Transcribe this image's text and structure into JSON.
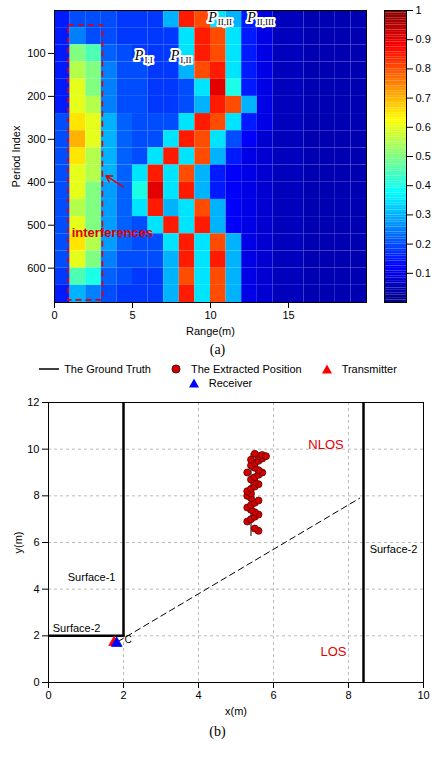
{
  "chart_data": [
    {
      "type": "heatmap",
      "caption": "(a)",
      "xlabel": "Range(m)",
      "ylabel": "Period Index",
      "xlim": [
        0,
        20
      ],
      "xticks": [
        0,
        5,
        10,
        15
      ],
      "ylim": [
        680,
        0
      ],
      "yticks": [
        100,
        200,
        300,
        400,
        500,
        600
      ],
      "x_bins": [
        0,
        1,
        2,
        3,
        4,
        5,
        6,
        7,
        8,
        9,
        10,
        11,
        12,
        13,
        14,
        15,
        16,
        17,
        18,
        19,
        20
      ],
      "y_bins": [
        0,
        40,
        80,
        120,
        160,
        200,
        240,
        280,
        320,
        360,
        400,
        440,
        480,
        520,
        560,
        600,
        640,
        680
      ],
      "cells": [
        [
          0.15,
          0.2,
          0.2,
          0.2,
          0.18,
          0.18,
          0.18,
          0.3,
          0.85,
          0.8,
          0.35,
          0.3,
          0.15,
          0.1,
          0.06,
          0.06,
          0.05,
          0.05,
          0.05,
          0.05
        ],
        [
          0.15,
          0.25,
          0.2,
          0.2,
          0.18,
          0.18,
          0.18,
          0.18,
          0.35,
          0.85,
          0.8,
          0.35,
          0.15,
          0.1,
          0.06,
          0.06,
          0.05,
          0.05,
          0.05,
          0.05
        ],
        [
          0.15,
          0.5,
          0.45,
          0.22,
          0.2,
          0.18,
          0.18,
          0.18,
          0.35,
          0.85,
          0.8,
          0.35,
          0.15,
          0.1,
          0.06,
          0.06,
          0.05,
          0.05,
          0.05,
          0.05
        ],
        [
          0.15,
          0.55,
          0.5,
          0.25,
          0.2,
          0.2,
          0.18,
          0.18,
          0.3,
          0.8,
          0.85,
          0.35,
          0.15,
          0.1,
          0.06,
          0.06,
          0.05,
          0.05,
          0.05,
          0.05
        ],
        [
          0.15,
          0.6,
          0.5,
          0.25,
          0.2,
          0.2,
          0.18,
          0.18,
          0.2,
          0.35,
          0.9,
          0.4,
          0.15,
          0.1,
          0.06,
          0.06,
          0.05,
          0.05,
          0.05,
          0.05
        ],
        [
          0.15,
          0.6,
          0.55,
          0.25,
          0.2,
          0.2,
          0.18,
          0.18,
          0.2,
          0.3,
          0.85,
          0.8,
          0.3,
          0.1,
          0.06,
          0.06,
          0.05,
          0.05,
          0.05,
          0.05
        ],
        [
          0.2,
          0.65,
          0.6,
          0.3,
          0.22,
          0.2,
          0.2,
          0.2,
          0.35,
          0.85,
          0.8,
          0.35,
          0.15,
          0.1,
          0.06,
          0.06,
          0.05,
          0.05,
          0.05,
          0.05
        ],
        [
          0.2,
          0.7,
          0.6,
          0.3,
          0.22,
          0.2,
          0.2,
          0.35,
          0.85,
          0.8,
          0.35,
          0.2,
          0.12,
          0.08,
          0.06,
          0.06,
          0.05,
          0.05,
          0.05,
          0.05
        ],
        [
          0.2,
          0.65,
          0.55,
          0.3,
          0.22,
          0.2,
          0.35,
          0.85,
          0.35,
          0.8,
          0.3,
          0.15,
          0.1,
          0.08,
          0.06,
          0.06,
          0.05,
          0.05,
          0.05,
          0.05
        ],
        [
          0.2,
          0.6,
          0.55,
          0.3,
          0.22,
          0.35,
          0.85,
          0.35,
          0.8,
          0.3,
          0.15,
          0.12,
          0.1,
          0.08,
          0.06,
          0.06,
          0.05,
          0.05,
          0.05,
          0.05
        ],
        [
          0.2,
          0.6,
          0.5,
          0.28,
          0.22,
          0.4,
          0.9,
          0.35,
          0.85,
          0.3,
          0.15,
          0.12,
          0.1,
          0.08,
          0.06,
          0.06,
          0.05,
          0.05,
          0.05,
          0.05
        ],
        [
          0.2,
          0.55,
          0.5,
          0.28,
          0.22,
          0.35,
          0.85,
          0.3,
          0.35,
          0.8,
          0.3,
          0.12,
          0.1,
          0.08,
          0.06,
          0.06,
          0.05,
          0.05,
          0.05,
          0.05
        ],
        [
          0.2,
          0.6,
          0.5,
          0.28,
          0.22,
          0.2,
          0.35,
          0.85,
          0.35,
          0.85,
          0.3,
          0.12,
          0.1,
          0.08,
          0.06,
          0.06,
          0.05,
          0.05,
          0.05,
          0.05
        ],
        [
          0.2,
          0.65,
          0.55,
          0.28,
          0.22,
          0.2,
          0.2,
          0.35,
          0.85,
          0.35,
          0.8,
          0.3,
          0.1,
          0.08,
          0.06,
          0.06,
          0.05,
          0.05,
          0.05,
          0.05
        ],
        [
          0.2,
          0.6,
          0.5,
          0.25,
          0.2,
          0.2,
          0.2,
          0.3,
          0.85,
          0.35,
          0.85,
          0.3,
          0.1,
          0.08,
          0.06,
          0.06,
          0.05,
          0.05,
          0.05,
          0.05
        ],
        [
          0.18,
          0.45,
          0.4,
          0.22,
          0.2,
          0.18,
          0.18,
          0.3,
          0.8,
          0.35,
          0.8,
          0.3,
          0.1,
          0.08,
          0.06,
          0.06,
          0.05,
          0.05,
          0.05,
          0.05
        ],
        [
          0.15,
          0.3,
          0.25,
          0.2,
          0.18,
          0.18,
          0.18,
          0.3,
          0.85,
          0.35,
          0.8,
          0.3,
          0.1,
          0.08,
          0.06,
          0.06,
          0.05,
          0.05,
          0.05,
          0.05
        ]
      ],
      "colorbar": {
        "range": [
          0,
          1
        ],
        "ticks": [
          0.1,
          0.2,
          0.3,
          0.4,
          0.5,
          0.6,
          0.7,
          0.8,
          0.9,
          1
        ]
      },
      "annotations": [
        {
          "text": "P",
          "subscript": "I,I",
          "x": 5.7,
          "y": 105
        },
        {
          "text": "P",
          "subscript": "I,II",
          "x": 8.0,
          "y": 105
        },
        {
          "text": "P",
          "subscript": "II,II",
          "x": 10.4,
          "y": 16
        },
        {
          "text": "P",
          "subscript": "II,III",
          "x": 12.9,
          "y": 16
        }
      ],
      "box": {
        "x": [
          0.9,
          3.1
        ],
        "y": [
          35,
          675
        ],
        "color": "#e00000",
        "line_style": "dashed"
      },
      "box_label": {
        "text": "interferences",
        "x": 1.1,
        "y": 518,
        "color": "#e00000",
        "arrow": {
          "x1": 4.4,
          "y1": 410,
          "x2": 3.3,
          "y2": 385
        }
      }
    },
    {
      "type": "scatter",
      "caption": "(b)",
      "xlabel": "x(m)",
      "ylabel": "y(m)",
      "xlim": [
        0,
        10
      ],
      "xticks": [
        0,
        2,
        4,
        6,
        8,
        10
      ],
      "ylim": [
        0,
        12
      ],
      "yticks": [
        0,
        2,
        4,
        6,
        8,
        10,
        12
      ],
      "grid": true,
      "legend": "top",
      "series": [
        {
          "name": "The Ground Truth",
          "type": "line",
          "color": "#000000",
          "x": [
            5.4,
            5.4
          ],
          "y": [
            6.3,
            9.8
          ]
        },
        {
          "name": "The Extracted Position",
          "type": "scatter",
          "marker": "circle",
          "color": "#d40000",
          "x": [
            5.6,
            5.5,
            5.3,
            5.4,
            5.5,
            5.6,
            5.5,
            5.4,
            5.3,
            5.4,
            5.5,
            5.6,
            5.4,
            5.3,
            5.4,
            5.3,
            5.4,
            5.5,
            5.6,
            5.5,
            5.4,
            5.5,
            5.6,
            5.7,
            5.6,
            5.5,
            5.4,
            5.5,
            5.6,
            5.7,
            5.6,
            5.7,
            5.5,
            5.4,
            5.3,
            5.8
          ],
          "y": [
            6.5,
            6.6,
            6.9,
            7.0,
            7.1,
            7.2,
            7.3,
            7.4,
            7.5,
            7.6,
            7.7,
            7.8,
            7.9,
            8.0,
            8.1,
            8.2,
            8.3,
            8.4,
            8.5,
            8.6,
            8.7,
            8.8,
            8.9,
            9.0,
            9.1,
            9.2,
            9.3,
            9.4,
            9.5,
            9.6,
            9.7,
            9.75,
            9.8,
            9.55,
            9.0,
            9.7
          ]
        },
        {
          "name": "Transmitter",
          "type": "scatter",
          "marker": "triangle",
          "color": "#ff0000",
          "x": [
            1.75
          ],
          "y": [
            1.72
          ]
        },
        {
          "name": "Receiver",
          "type": "scatter",
          "marker": "triangle",
          "color": "#0000ff",
          "x": [
            1.82
          ],
          "y": [
            1.68
          ]
        }
      ],
      "surfaces": [
        {
          "label": "Surface-1",
          "x": [
            2,
            2
          ],
          "y": [
            2,
            12
          ],
          "label_x": 1.15,
          "label_y": 4.5
        },
        {
          "label": "Surface-2",
          "x": [
            0,
            2
          ],
          "y": [
            2,
            2
          ],
          "label_x": 0.75,
          "label_y": 2.3
        },
        {
          "label": "Surface-2",
          "x": [
            8.4,
            8.4
          ],
          "y": [
            0,
            12
          ],
          "label_x": 9.2,
          "label_y": 5.7
        }
      ],
      "boundary": {
        "x": [
          1.85,
          8.3
        ],
        "y": [
          1.75,
          7.9
        ],
        "line_style": "dashed",
        "color": "#000000"
      },
      "annotations": [
        {
          "text": "NLOS",
          "x": 7.4,
          "y": 10.2,
          "color": "#e00000"
        },
        {
          "text": "LOS",
          "x": 7.6,
          "y": 1.3,
          "color": "#e00000"
        },
        {
          "text": "C",
          "x": 2.12,
          "y": 1.85,
          "color": "#000000"
        }
      ]
    }
  ]
}
